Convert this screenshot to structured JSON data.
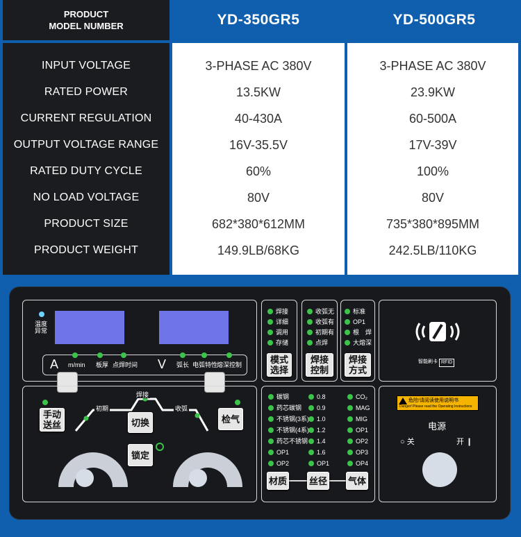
{
  "table": {
    "header": {
      "left_line1": "PRODUCT",
      "left_line2": "MODEL NUMBER",
      "col1": "YD-350GR5",
      "col2": "YD-500GR5"
    },
    "rows": [
      {
        "label": "INPUT VOLTAGE",
        "v1": "3-PHASE AC 380V",
        "v2": "3-PHASE AC 380V"
      },
      {
        "label": "RATED POWER",
        "v1": "13.5KW",
        "v2": "23.9KW"
      },
      {
        "label": "CURRENT REGULATION",
        "v1": "40-430A",
        "v2": "60-500A"
      },
      {
        "label": "OUTPUT VOLTAGE RANGE",
        "v1": "16V-35.5V",
        "v2": "17V-39V"
      },
      {
        "label": "RATED DUTY CYCLE",
        "v1": "60%",
        "v2": "100%"
      },
      {
        "label": "NO LOAD VOLTAGE",
        "v1": "80V",
        "v2": "80V"
      },
      {
        "label": "PRODUCT SIZE",
        "v1": "682*380*612MM",
        "v2": "735*380*895MM"
      },
      {
        "label": "PRODUCT WEIGHT",
        "v1": "149.9LB/68KG",
        "v2": "242.5LB/110KG"
      }
    ]
  },
  "colors": {
    "page_bg": "#0f5fae",
    "dark": "#1b1c20",
    "screen": "#6f74e6",
    "led_green": "#3cc44a",
    "warning": "#f5b400"
  },
  "panel": {
    "temp_label1": "温度",
    "temp_label2": "异常",
    "display_a": {
      "unit": "A",
      "items": [
        "m/min",
        "板厚",
        "点焊时间"
      ]
    },
    "display_v": {
      "unit": "V",
      "items": [
        "弧长",
        "电弧特性",
        "熔深控制"
      ]
    },
    "mode_leds": [
      "焊接",
      "详细",
      "调用",
      "存储"
    ],
    "mode_button": [
      "模式",
      "选择"
    ],
    "control_leds": [
      "收弧无",
      "收弧有",
      "初期有",
      "点焊"
    ],
    "control_button": [
      "焊接",
      "控制"
    ],
    "method_leds": [
      "标准",
      "OP1",
      "根　焊",
      "大熔深"
    ],
    "method_button": [
      "焊接",
      "方式"
    ],
    "rfid": {
      "brand": "智能刷卡",
      "tag": "RFID"
    },
    "left_section": {
      "manual_feed": [
        "手动",
        "送丝"
      ],
      "weld_label": "焊接",
      "initial_label": "初期",
      "crater_label": "收弧",
      "switch_button": "切换",
      "gas_check_button": "检气",
      "lock_button": "锁定"
    },
    "material_leds": [
      "碳钢",
      "药芯碳钢",
      "不锈钢(3系)",
      "不锈钢(4系)",
      "药芯不锈钢",
      "OP1",
      "OP2"
    ],
    "diameter_leds": [
      "0.8",
      "0.9",
      "1.0",
      "1.2",
      "1.4",
      "1.6",
      "OP1"
    ],
    "gas_leds": [
      "CO₂",
      "MAG",
      "MIG",
      "OP1",
      "OP2",
      "OP3",
      "OP4"
    ],
    "material_button": "材质",
    "diameter_button": "丝径",
    "gas_button": "气体",
    "warning": {
      "line1": "危险!请阅读使用说明书",
      "line2": "Danger! Please read the Operating Instructions"
    },
    "power": {
      "title": "电源",
      "off": "关",
      "on": "开"
    }
  }
}
